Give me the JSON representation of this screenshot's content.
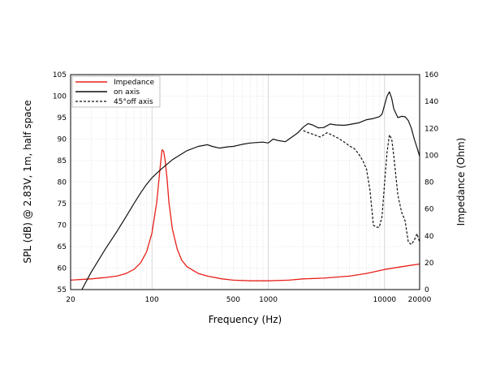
{
  "chart_data": {
    "type": "line",
    "xlabel": "Frequency (Hz)",
    "ylabel_left": "SPL (dB) @ 2.83V, 1m, half space",
    "ylabel_right": "Impedance (Ohm)",
    "x_scale": "log",
    "xlim": [
      20,
      20000
    ],
    "ylim_left": [
      55,
      105
    ],
    "ylim_right": [
      0,
      160
    ],
    "x_ticks": [
      20,
      100,
      500,
      1000,
      10000,
      20000
    ],
    "x_tick_labels": [
      "20",
      "100",
      "500",
      "1000",
      "10000",
      "20000"
    ],
    "y_left_ticks": [
      55,
      60,
      65,
      70,
      75,
      80,
      85,
      90,
      95,
      100,
      105
    ],
    "y_left_tick_labels": [
      "55",
      "60",
      "65",
      "70",
      "75",
      "80",
      "85",
      "90",
      "95",
      "100",
      "105"
    ],
    "y_right_ticks": [
      0,
      20,
      40,
      60,
      80,
      100,
      120,
      140,
      160
    ],
    "y_right_tick_labels": [
      "0",
      "20",
      "40",
      "60",
      "80",
      "100",
      "120",
      "140",
      "160"
    ],
    "grid": true,
    "legend_position": "top-left",
    "series": [
      {
        "name": "Impedance",
        "axis": "right",
        "color": "#e8201a",
        "style": "solid",
        "points": [
          [
            20,
            7
          ],
          [
            30,
            8
          ],
          [
            40,
            9
          ],
          [
            50,
            10
          ],
          [
            60,
            12
          ],
          [
            70,
            15
          ],
          [
            80,
            20
          ],
          [
            90,
            28
          ],
          [
            100,
            42
          ],
          [
            110,
            65
          ],
          [
            118,
            92
          ],
          [
            122,
            104
          ],
          [
            126,
            103
          ],
          [
            130,
            96
          ],
          [
            135,
            82
          ],
          [
            140,
            65
          ],
          [
            150,
            45
          ],
          [
            165,
            30
          ],
          [
            180,
            22
          ],
          [
            200,
            17
          ],
          [
            250,
            12
          ],
          [
            300,
            10
          ],
          [
            400,
            8
          ],
          [
            500,
            7
          ],
          [
            700,
            6.5
          ],
          [
            1000,
            6.5
          ],
          [
            1500,
            7
          ],
          [
            2000,
            8
          ],
          [
            3000,
            8.5
          ],
          [
            5000,
            10
          ],
          [
            7000,
            12
          ],
          [
            10000,
            15
          ],
          [
            14000,
            17
          ],
          [
            20000,
            19
          ]
        ]
      },
      {
        "name": "on axis",
        "axis": "left",
        "color": "#111111",
        "style": "solid",
        "points": [
          [
            25,
            55
          ],
          [
            30,
            59
          ],
          [
            40,
            64.5
          ],
          [
            50,
            68.5
          ],
          [
            60,
            72
          ],
          [
            70,
            75
          ],
          [
            80,
            77.5
          ],
          [
            90,
            79.5
          ],
          [
            100,
            81
          ],
          [
            120,
            83
          ],
          [
            150,
            85.2
          ],
          [
            200,
            87.3
          ],
          [
            250,
            88.3
          ],
          [
            300,
            88.7
          ],
          [
            330,
            88.3
          ],
          [
            380,
            87.9
          ],
          [
            450,
            88.2
          ],
          [
            500,
            88.3
          ],
          [
            600,
            88.8
          ],
          [
            700,
            89.1
          ],
          [
            800,
            89.2
          ],
          [
            900,
            89.3
          ],
          [
            1000,
            89.1
          ],
          [
            1100,
            90
          ],
          [
            1200,
            89.7
          ],
          [
            1400,
            89.4
          ],
          [
            1600,
            90.5
          ],
          [
            1800,
            91.5
          ],
          [
            2000,
            92.8
          ],
          [
            2200,
            93.6
          ],
          [
            2400,
            93.3
          ],
          [
            2700,
            92.6
          ],
          [
            3000,
            92.7
          ],
          [
            3400,
            93.5
          ],
          [
            3800,
            93.3
          ],
          [
            4500,
            93.2
          ],
          [
            5000,
            93.4
          ],
          [
            6000,
            93.8
          ],
          [
            7000,
            94.5
          ],
          [
            8000,
            94.8
          ],
          [
            9000,
            95.2
          ],
          [
            9500,
            95.8
          ],
          [
            10000,
            98
          ],
          [
            10500,
            100
          ],
          [
            11000,
            101
          ],
          [
            11500,
            99.5
          ],
          [
            12000,
            97
          ],
          [
            13000,
            95
          ],
          [
            14000,
            95.3
          ],
          [
            15000,
            95.2
          ],
          [
            16000,
            94.3
          ],
          [
            17000,
            92.5
          ],
          [
            18000,
            90
          ],
          [
            19000,
            88
          ],
          [
            20000,
            86
          ]
        ]
      },
      {
        "name": "45°off axis",
        "axis": "left",
        "color": "#111111",
        "style": "dashed",
        "points": [
          [
            2000,
            92
          ],
          [
            2200,
            91.5
          ],
          [
            2500,
            91
          ],
          [
            2800,
            90.5
          ],
          [
            3000,
            91
          ],
          [
            3200,
            91.5
          ],
          [
            3500,
            91
          ],
          [
            4000,
            90.2
          ],
          [
            4500,
            89.3
          ],
          [
            5000,
            88.4
          ],
          [
            5500,
            87.8
          ],
          [
            6000,
            86.5
          ],
          [
            6500,
            85
          ],
          [
            7000,
            83
          ],
          [
            7500,
            78
          ],
          [
            8000,
            70
          ],
          [
            8500,
            69.5
          ],
          [
            9000,
            69.5
          ],
          [
            9500,
            72
          ],
          [
            10000,
            80
          ],
          [
            10500,
            87
          ],
          [
            11000,
            91
          ],
          [
            11500,
            90
          ],
          [
            12000,
            86
          ],
          [
            13000,
            77
          ],
          [
            14000,
            73
          ],
          [
            15000,
            71
          ],
          [
            16000,
            66
          ],
          [
            17000,
            65.5
          ],
          [
            18000,
            66.5
          ],
          [
            19000,
            68
          ],
          [
            20000,
            66
          ]
        ]
      }
    ]
  }
}
